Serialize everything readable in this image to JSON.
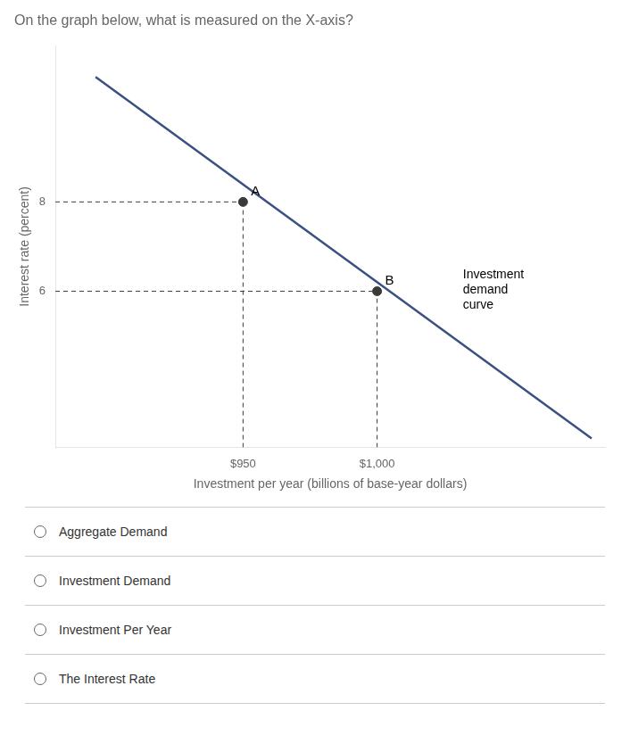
{
  "chart_data": {
    "type": "line",
    "title": "On the graph below, what is measured on the X-axis?",
    "xlabel": "Investment per year (billions of base-year dollars)",
    "ylabel": "Interest rate (percent)",
    "x": [
      895,
      1080
    ],
    "values": [
      10.8,
      2.7
    ],
    "color": "#3a5080",
    "points": [
      {
        "label": "A",
        "x": 950,
        "y": 8,
        "color": "#3a3a3a"
      },
      {
        "label": "B",
        "x": 1000,
        "y": 6,
        "color": "#3a3a3a"
      }
    ],
    "annotations": [
      {
        "text": "Investment\ndemand\ncurve",
        "x": 1032,
        "y": 6.5
      }
    ],
    "xlim": [
      880,
      1085
    ],
    "ylim": [
      2.5,
      11.5
    ],
    "xticks": [
      {
        "value": 950,
        "label": "$950"
      },
      {
        "value": 1000,
        "label": "$1,000"
      }
    ],
    "yticks": [
      6,
      8
    ],
    "grid": false,
    "options": [
      "Aggregate Demand",
      "Investment Demand",
      "Investment Per Year",
      "The Interest Rate"
    ]
  }
}
